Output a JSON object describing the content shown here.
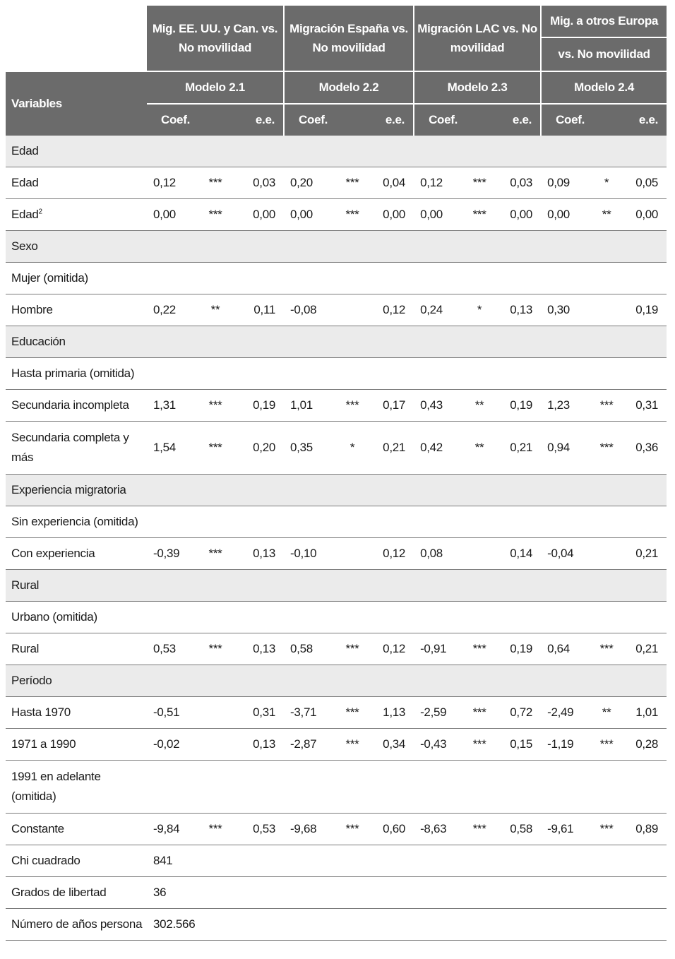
{
  "header": {
    "groups": [
      "Mig. EE. UU. y Can. vs. No movilidad",
      "Migración España vs. No movilidad",
      "Migración LAC vs. No movilidad"
    ],
    "group4_line1": "Mig. a otros Europa",
    "group4_line2": "vs. No movilidad",
    "variables": "Variables",
    "models": [
      "Modelo 2.1",
      "Modelo 2.2",
      "Modelo 2.3",
      "Modelo 2.4"
    ],
    "coef": "Coef.",
    "ee": "e.e."
  },
  "rows": [
    {
      "label": "Edad",
      "section": true
    },
    {
      "label": "Edad",
      "cells": [
        "0,12",
        "***",
        "0,03",
        "0,20",
        "***",
        "0,04",
        "0,12",
        "***",
        "0,03",
        "0,09",
        "*",
        "0,05"
      ]
    },
    {
      "label": "Edad",
      "sup": "2",
      "cells": [
        "0,00",
        "***",
        "0,00",
        "0,00",
        "***",
        "0,00",
        "0,00",
        "***",
        "0,00",
        "0,00",
        "**",
        "0,00"
      ]
    },
    {
      "label": "Sexo",
      "section": true
    },
    {
      "label": "Mujer (omitida)"
    },
    {
      "label": "Hombre",
      "cells": [
        "0,22",
        "**",
        "0,11",
        "-0,08",
        "",
        "0,12",
        "0,24",
        "*",
        "0,13",
        "0,30",
        "",
        "0,19"
      ]
    },
    {
      "label": "Educación",
      "section": true
    },
    {
      "label": "Hasta primaria (omitida)"
    },
    {
      "label": "Secundaria incompleta",
      "cells": [
        "1,31",
        "***",
        "0,19",
        "1,01",
        "***",
        "0,17",
        "0,43",
        "**",
        "0,19",
        "1,23",
        "***",
        "0,31"
      ]
    },
    {
      "label": "Secundaria completa y más",
      "tall": true,
      "cells": [
        "1,54",
        "***",
        "0,20",
        "0,35",
        "*",
        "0,21",
        "0,42",
        "**",
        "0,21",
        "0,94",
        "***",
        "0,36"
      ]
    },
    {
      "label": "Experiencia migratoria",
      "section": true
    },
    {
      "label": "Sin experiencia (omitida)"
    },
    {
      "label": "Con experiencia",
      "cells": [
        "-0,39",
        "***",
        "0,13",
        "-0,10",
        "",
        "0,12",
        "0,08",
        "",
        "0,14",
        "-0,04",
        "",
        "0,21"
      ]
    },
    {
      "label": "Rural",
      "section": true
    },
    {
      "label": "Urbano (omitida)"
    },
    {
      "label": "Rural",
      "cells": [
        "0,53",
        "***",
        "0,13",
        "0,58",
        "***",
        "0,12",
        "-0,91",
        "***",
        "0,19",
        "0,64",
        "***",
        "0,21"
      ]
    },
    {
      "label": "Período",
      "section": true
    },
    {
      "label": "Hasta 1970",
      "cells": [
        "-0,51",
        "",
        "0,31",
        "-3,71",
        "***",
        "1,13",
        "-2,59",
        "***",
        "0,72",
        "-2,49",
        "**",
        "1,01"
      ]
    },
    {
      "label": "1971 a 1990",
      "cells": [
        "-0,02",
        "",
        "0,13",
        "-2,87",
        "***",
        "0,34",
        "-0,43",
        "***",
        "0,15",
        "-1,19",
        "***",
        "0,28"
      ]
    },
    {
      "label": "1991 en adelante (omitida)",
      "tall": true
    },
    {
      "label": "Constante",
      "cells": [
        "-9,84",
        "***",
        "0,53",
        "-9,68",
        "***",
        "0,60",
        "-8,63",
        "***",
        "0,58",
        "-9,61",
        "***",
        "0,89"
      ]
    },
    {
      "label": "Chi cuadrado",
      "value": "841"
    },
    {
      "label": "Grados de libertad",
      "value": "36"
    },
    {
      "label": "Número de años persona",
      "value": "302.566"
    }
  ]
}
